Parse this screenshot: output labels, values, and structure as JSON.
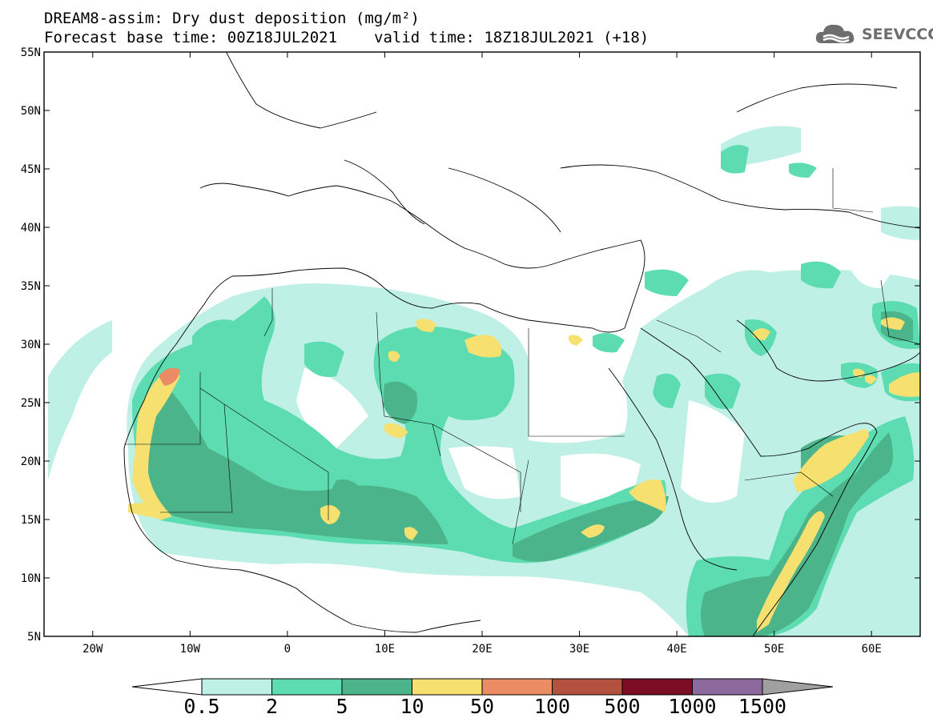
{
  "header": {
    "title_line1": "DREAM8-assim: Dry dust deposition (mg/m²)",
    "title_line2_base": "Forecast base time: 00Z18JUL2021",
    "title_line2_valid": "valid time: 18Z18JUL2021 (+18)",
    "logo_text": "SEEVCCC"
  },
  "map": {
    "lat_ticks": [
      "55N",
      "50N",
      "45N",
      "40N",
      "35N",
      "30N",
      "25N",
      "20N",
      "15N",
      "10N",
      "5N"
    ],
    "lat_values": [
      55,
      50,
      45,
      40,
      35,
      30,
      25,
      20,
      15,
      10,
      5
    ],
    "lon_ticks": [
      "20W",
      "10W",
      "0",
      "10E",
      "20E",
      "30E",
      "40E",
      "50E",
      "60E"
    ],
    "lon_values": [
      -20,
      -10,
      0,
      10,
      20,
      30,
      40,
      50,
      60
    ],
    "lon_range": [
      -25,
      65
    ],
    "lat_range": [
      5,
      55
    ]
  },
  "legend": {
    "labels": [
      "0.5",
      "2",
      "5",
      "10",
      "50",
      "100",
      "500",
      "1000",
      "1500"
    ],
    "colors": [
      "#bff0e6",
      "#5ddcb1",
      "#4cb48a",
      "#f5e070",
      "#ec8c64",
      "#b2523e",
      "#7c0c24",
      "#8c6a9e",
      "#a0a0a0"
    ],
    "units": "mg/m²"
  }
}
